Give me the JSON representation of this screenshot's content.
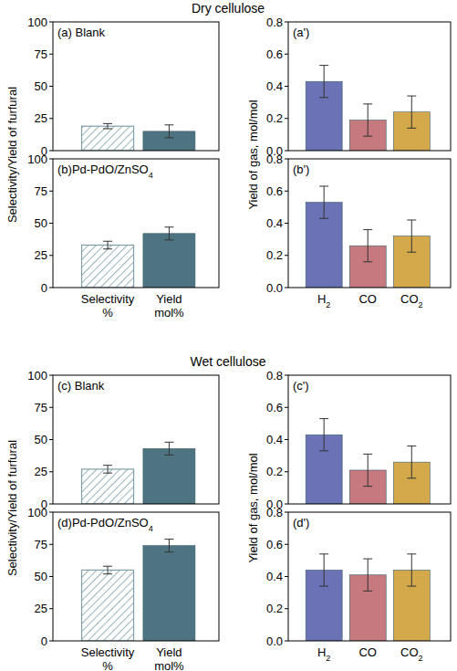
{
  "chart_data": [
    {
      "type": "bar",
      "group_title": "Dry cellulose",
      "title": "(a) Blank",
      "y_label": "Selectivity/Yield of furfural",
      "categories": [
        null,
        null
      ],
      "values": [
        19,
        15
      ],
      "errors": [
        2,
        5
      ],
      "colors": [
        "#5e8898",
        "#4e7481"
      ],
      "ylim": [
        0,
        100
      ],
      "yticks": [
        0,
        25,
        50,
        75,
        100
      ],
      "tick_labels": "y"
    },
    {
      "type": "bar",
      "title": "(a')",
      "y_label": "Yield of gas, mol/mol",
      "categories": [
        null,
        null,
        null
      ],
      "values": [
        0.43,
        0.19,
        0.24
      ],
      "errors": [
        0.1,
        0.1,
        0.1
      ],
      "colors": [
        "#6b72b5",
        "#c6797f",
        "#d4a94c"
      ],
      "ylim": [
        0,
        0.8
      ],
      "yticks": [
        {
          "value": 0,
          "label": "0.0"
        },
        {
          "value": 0.2,
          "label": "0.2"
        },
        {
          "value": 0.4,
          "label": "0.4"
        },
        {
          "value": 0.6,
          "label": "0.6"
        },
        {
          "value": 0.8,
          "label": "0.8"
        }
      ],
      "tick_labels": "y"
    },
    {
      "type": "bar",
      "title": "(b)Pd-PdO/ZnSO4",
      "categories": [
        "Selectivity %",
        "Yield mol%"
      ],
      "values": [
        33,
        42
      ],
      "errors": [
        3,
        5
      ],
      "colors": [
        "#5e8898",
        "#4e7481"
      ],
      "ylim": [
        0,
        100
      ],
      "yticks": [
        0,
        25,
        50,
        75,
        100
      ]
    },
    {
      "type": "bar",
      "title": "(b')",
      "categories": [
        "H2",
        "CO",
        "CO2"
      ],
      "values": [
        0.53,
        0.26,
        0.32
      ],
      "errors": [
        0.1,
        0.1,
        0.1
      ],
      "colors": [
        "#6b72b5",
        "#c6797f",
        "#d4a94c"
      ],
      "ylim": [
        0,
        0.8
      ],
      "yticks": [
        {
          "value": 0,
          "label": "0.0"
        },
        {
          "value": 0.2,
          "label": "0.2"
        },
        {
          "value": 0.4,
          "label": "0.4"
        },
        {
          "value": 0.6,
          "label": "0.6"
        },
        {
          "value": 0.8,
          "label": "0.8"
        }
      ]
    },
    {
      "type": "bar",
      "group_title": "Wet cellulose",
      "title": "(c) Blank",
      "y_label": "Selectivity/Yield of furfural",
      "categories": [
        null,
        null
      ],
      "values": [
        27,
        43
      ],
      "errors": [
        3,
        5
      ],
      "colors": [
        "#5e8898",
        "#4e7481"
      ],
      "ylim": [
        0,
        100
      ],
      "yticks": [
        0,
        25,
        50,
        75,
        100
      ],
      "tick_labels": "y"
    },
    {
      "type": "bar",
      "title": "(c')",
      "y_label": "Yield of gas, mol/mol",
      "categories": [
        null,
        null,
        null
      ],
      "values": [
        0.43,
        0.21,
        0.26
      ],
      "errors": [
        0.1,
        0.1,
        0.1
      ],
      "colors": [
        "#6b72b5",
        "#c6797f",
        "#d4a94c"
      ],
      "ylim": [
        0,
        0.8
      ],
      "yticks": [
        {
          "value": 0,
          "label": "0.0"
        },
        {
          "value": 0.2,
          "label": "0.2"
        },
        {
          "value": 0.4,
          "label": "0.4"
        },
        {
          "value": 0.6,
          "label": "0.6"
        },
        {
          "value": 0.8,
          "label": "0.8"
        }
      ],
      "tick_labels": "y"
    },
    {
      "type": "bar",
      "title": "(d)Pd-PdO/ZnSO4",
      "categories": [
        "Selectivity %",
        "Yield mol%"
      ],
      "values": [
        55,
        74
      ],
      "errors": [
        3,
        5
      ],
      "colors": [
        "#5e8898",
        "#4e7481"
      ],
      "ylim": [
        0,
        100
      ],
      "yticks": [
        0,
        25,
        50,
        75,
        100
      ]
    },
    {
      "type": "bar",
      "title": "(d')",
      "categories": [
        "H2",
        "CO",
        "CO2"
      ],
      "values": [
        0.44,
        0.41,
        0.44
      ],
      "errors": [
        0.1,
        0.1,
        0.1
      ],
      "colors": [
        "#6b72b5",
        "#c6797f",
        "#d4a94c"
      ],
      "ylim": [
        0,
        0.8
      ],
      "yticks": [
        {
          "value": 0,
          "label": "0.0"
        },
        {
          "value": 0.2,
          "label": "0.2"
        },
        {
          "value": 0.4,
          "label": "0.4"
        },
        {
          "value": 0.6,
          "label": "0.6"
        },
        {
          "value": 0.8,
          "label": "0.8"
        }
      ]
    }
  ]
}
